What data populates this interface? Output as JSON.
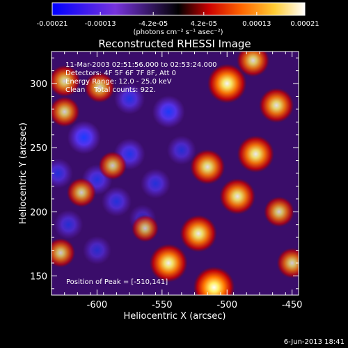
{
  "chart_data": {
    "type": "heatmap",
    "title": "Reconstructed RHESSI Image",
    "xlabel": "Heliocentric X (arcsec)",
    "ylabel": "Heliocentric Y (arcsec)",
    "xlim": [
      -635,
      -445
    ],
    "ylim": [
      135,
      325
    ],
    "x_ticks": [
      "-600",
      "-550",
      "-500",
      "-450"
    ],
    "x_tick_values": [
      -600,
      -550,
      -500,
      -450
    ],
    "y_ticks": [
      "150",
      "200",
      "250",
      "300"
    ],
    "y_tick_values": [
      150,
      200,
      250,
      300
    ],
    "colorbar": {
      "min": -0.00021,
      "max": 0.00021,
      "ticks": [
        "-0.00021",
        "-0.00013",
        "-4.2e-05",
        "4.2e-05",
        "0.00013",
        "0.00021"
      ],
      "tick_values": [
        -0.00021,
        -0.00013,
        -4.2e-05,
        4.2e-05,
        0.00013,
        0.00021
      ],
      "unit_label": "(photons cm⁻² s⁻¹ asec⁻²)",
      "colors": [
        "#0000ff",
        "#7733dd",
        "#000000",
        "#cc0000",
        "#ff7700",
        "#ffff66",
        "#ffffff"
      ]
    },
    "peak": [
      -510,
      141
    ],
    "bright_sources": [
      {
        "x": -510,
        "y": 141,
        "level": 1.0
      },
      {
        "x": -545,
        "y": 160,
        "level": 0.85
      },
      {
        "x": -522,
        "y": 183,
        "level": 0.8
      },
      {
        "x": -492,
        "y": 212,
        "level": 0.75
      },
      {
        "x": -515,
        "y": 235,
        "level": 0.7
      },
      {
        "x": -478,
        "y": 245,
        "level": 0.8
      },
      {
        "x": -462,
        "y": 283,
        "level": 0.7
      },
      {
        "x": -500,
        "y": 300,
        "level": 0.9
      },
      {
        "x": -480,
        "y": 318,
        "level": 0.6
      },
      {
        "x": -625,
        "y": 302,
        "level": 0.55
      },
      {
        "x": -598,
        "y": 297,
        "level": 0.5
      },
      {
        "x": -625,
        "y": 278,
        "level": 0.5
      },
      {
        "x": -612,
        "y": 215,
        "level": 0.45
      },
      {
        "x": -588,
        "y": 236,
        "level": 0.4
      },
      {
        "x": -628,
        "y": 168,
        "level": 0.45
      },
      {
        "x": -460,
        "y": 200,
        "level": 0.5
      },
      {
        "x": -450,
        "y": 160,
        "level": 0.5
      },
      {
        "x": -563,
        "y": 187,
        "level": 0.35
      }
    ],
    "dim_sources": [
      {
        "x": -610,
        "y": 258,
        "level": 1.0
      },
      {
        "x": -575,
        "y": 245,
        "level": 0.85
      },
      {
        "x": -545,
        "y": 278,
        "level": 0.95
      },
      {
        "x": -575,
        "y": 288,
        "level": 0.8
      },
      {
        "x": -600,
        "y": 225,
        "level": 0.8
      },
      {
        "x": -585,
        "y": 208,
        "level": 0.75
      },
      {
        "x": -555,
        "y": 222,
        "level": 0.75
      },
      {
        "x": -622,
        "y": 190,
        "level": 0.7
      },
      {
        "x": -600,
        "y": 170,
        "level": 0.65
      },
      {
        "x": -535,
        "y": 248,
        "level": 0.7
      },
      {
        "x": -630,
        "y": 230,
        "level": 0.75
      },
      {
        "x": -565,
        "y": 195,
        "level": 0.55
      }
    ]
  },
  "colorbar_unit": "(photons cm⁻² s⁻¹ asec⁻²)",
  "info_lines": [
    "11-Mar-2003 02:51:56.000 to 02:53:24.000",
    "Detectors: 4F 5F 6F 7F 8F, Att 0",
    "Energy Range: 12.0 - 25.0 keV",
    "Clean    Total counts: 922."
  ],
  "peak_label": "Position of Peak = [-510,141]",
  "timestamp": "6-Jun-2013 18:41"
}
